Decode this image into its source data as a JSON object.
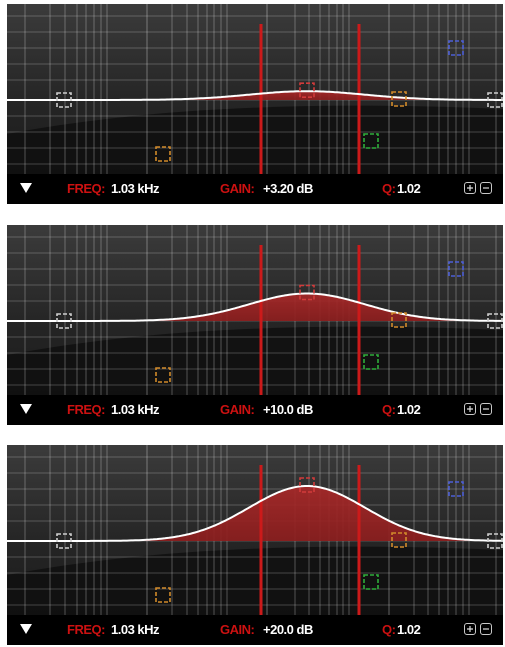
{
  "panels": [
    {
      "freq_label": "FREQ:",
      "freq_value": "1.03 kHz",
      "gain_label": "GAIN:",
      "gain_value": "+3.20 dB",
      "q_label": "Q:",
      "q_value": "1.02",
      "gain_db": 3.2
    },
    {
      "freq_label": "FREQ:",
      "freq_value": "1.03 kHz",
      "gain_label": "GAIN:",
      "gain_value": "+10.0 dB",
      "q_label": "Q:",
      "q_value": "1.02",
      "gain_db": 10.0
    },
    {
      "freq_label": "FREQ:",
      "freq_value": "1.03 kHz",
      "gain_label": "GAIN:",
      "gain_value": "+20.0 dB",
      "q_label": "Q:",
      "q_value": "1.02",
      "gain_db": 20.0
    }
  ],
  "icons": {
    "menu": "triangle-down-icon",
    "add": "plus-icon",
    "remove": "minus-icon",
    "band_handle": "band-handle-icon"
  },
  "colors": {
    "curve": "#ffffff",
    "fill": "#8c1e1e",
    "band_markers": "#cc1a1a",
    "label": "#cc1111",
    "value": "#ffffff",
    "handle_gray": "#cfcfcf",
    "handle_orange": "#d18a2a",
    "handle_red": "#d23b3b",
    "handle_green": "#2fae3a",
    "handle_blue": "#4d5fd6"
  }
}
